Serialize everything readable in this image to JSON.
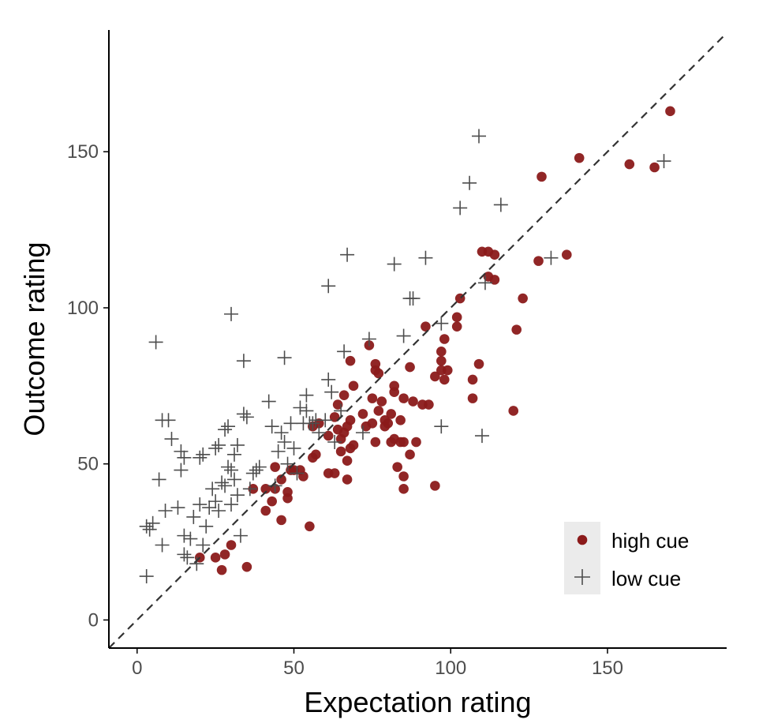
{
  "chart_data": {
    "type": "scatter",
    "title": "",
    "xlabel": "Expectation rating",
    "ylabel": "Outcome rating",
    "xlim": [
      -9,
      188
    ],
    "ylim": [
      -9,
      189
    ],
    "xticks": [
      0,
      50,
      100,
      150
    ],
    "yticks": [
      0,
      50,
      100,
      150
    ],
    "grid": false,
    "legend_position": "bottom-right",
    "reference_line": {
      "type": "identity",
      "style": "dashed",
      "color": "#333333"
    },
    "series": [
      {
        "name": "high cue",
        "marker": "circle",
        "color": "#8b1a1a",
        "points": [
          [
            20,
            20
          ],
          [
            25,
            20
          ],
          [
            27,
            16
          ],
          [
            30,
            24
          ],
          [
            28,
            21
          ],
          [
            35,
            17
          ],
          [
            37,
            42
          ],
          [
            41,
            42
          ],
          [
            41,
            35
          ],
          [
            43,
            38
          ],
          [
            44,
            42
          ],
          [
            44,
            49
          ],
          [
            46,
            45
          ],
          [
            46,
            32
          ],
          [
            48,
            41
          ],
          [
            48,
            39
          ],
          [
            49,
            48
          ],
          [
            50,
            48
          ],
          [
            52,
            48
          ],
          [
            53,
            46
          ],
          [
            55,
            30
          ],
          [
            56,
            52
          ],
          [
            56,
            62
          ],
          [
            57,
            53
          ],
          [
            58,
            63
          ],
          [
            61,
            59
          ],
          [
            61,
            47
          ],
          [
            63,
            65
          ],
          [
            63,
            47
          ],
          [
            64,
            69
          ],
          [
            64,
            61
          ],
          [
            65,
            58
          ],
          [
            65,
            54
          ],
          [
            66,
            60
          ],
          [
            66,
            72
          ],
          [
            67,
            62
          ],
          [
            67,
            51
          ],
          [
            67,
            45
          ],
          [
            68,
            83
          ],
          [
            68,
            64
          ],
          [
            68,
            55
          ],
          [
            69,
            75
          ],
          [
            69,
            56
          ],
          [
            72,
            66
          ],
          [
            73,
            62
          ],
          [
            74,
            88
          ],
          [
            75,
            63
          ],
          [
            75,
            71
          ],
          [
            76,
            57
          ],
          [
            76,
            80
          ],
          [
            76,
            82
          ],
          [
            77,
            67
          ],
          [
            77,
            79
          ],
          [
            78,
            70
          ],
          [
            79,
            64
          ],
          [
            79,
            62
          ],
          [
            80,
            63
          ],
          [
            81,
            66
          ],
          [
            81,
            57
          ],
          [
            82,
            73
          ],
          [
            82,
            75
          ],
          [
            82,
            58
          ],
          [
            83,
            49
          ],
          [
            84,
            57
          ],
          [
            84,
            64
          ],
          [
            85,
            42
          ],
          [
            85,
            46
          ],
          [
            85,
            57
          ],
          [
            85,
            71
          ],
          [
            87,
            53
          ],
          [
            87,
            81
          ],
          [
            88,
            70
          ],
          [
            89,
            57
          ],
          [
            91,
            69
          ],
          [
            92,
            94
          ],
          [
            93,
            69
          ],
          [
            95,
            43
          ],
          [
            95,
            78
          ],
          [
            97,
            83
          ],
          [
            97,
            80
          ],
          [
            97,
            86
          ],
          [
            98,
            77
          ],
          [
            98,
            90
          ],
          [
            99,
            80
          ],
          [
            102,
            97
          ],
          [
            102,
            94
          ],
          [
            103,
            103
          ],
          [
            107,
            71
          ],
          [
            107,
            77
          ],
          [
            109,
            82
          ],
          [
            110,
            118
          ],
          [
            112,
            110
          ],
          [
            112,
            118
          ],
          [
            114,
            117
          ],
          [
            114,
            109
          ],
          [
            120,
            67
          ],
          [
            121,
            93
          ],
          [
            123,
            103
          ],
          [
            128,
            115
          ],
          [
            129,
            142
          ],
          [
            137,
            117
          ],
          [
            141,
            148
          ],
          [
            157,
            146
          ],
          [
            165,
            145
          ],
          [
            170,
            163
          ]
        ]
      },
      {
        "name": "low cue",
        "marker": "cross",
        "color": "#4d4d4d",
        "points": [
          [
            3,
            14
          ],
          [
            3,
            30
          ],
          [
            4,
            29
          ],
          [
            5,
            31
          ],
          [
            6,
            89
          ],
          [
            7,
            45
          ],
          [
            8,
            64
          ],
          [
            8,
            24
          ],
          [
            9,
            35
          ],
          [
            10,
            64
          ],
          [
            11,
            58
          ],
          [
            13,
            36
          ],
          [
            14,
            54
          ],
          [
            14,
            48
          ],
          [
            15,
            52
          ],
          [
            15,
            21
          ],
          [
            15,
            27
          ],
          [
            16,
            20
          ],
          [
            17,
            26
          ],
          [
            18,
            33
          ],
          [
            19,
            18
          ],
          [
            20,
            37
          ],
          [
            20,
            52
          ],
          [
            21,
            53
          ],
          [
            21,
            24
          ],
          [
            22,
            30
          ],
          [
            23,
            36
          ],
          [
            24,
            42
          ],
          [
            25,
            38
          ],
          [
            25,
            55
          ],
          [
            26,
            56
          ],
          [
            26,
            35
          ],
          [
            27,
            44
          ],
          [
            28,
            43
          ],
          [
            28,
            61
          ],
          [
            29,
            49
          ],
          [
            29,
            62
          ],
          [
            30,
            37
          ],
          [
            30,
            98
          ],
          [
            30,
            48
          ],
          [
            31,
            45
          ],
          [
            31,
            53
          ],
          [
            32,
            40
          ],
          [
            32,
            56
          ],
          [
            33,
            27
          ],
          [
            34,
            83
          ],
          [
            34,
            66
          ],
          [
            35,
            65
          ],
          [
            36,
            42
          ],
          [
            37,
            47
          ],
          [
            38,
            48
          ],
          [
            39,
            49
          ],
          [
            42,
            70
          ],
          [
            43,
            62
          ],
          [
            44,
            43
          ],
          [
            45,
            54
          ],
          [
            46,
            60
          ],
          [
            47,
            57
          ],
          [
            47,
            84
          ],
          [
            48,
            50
          ],
          [
            49,
            63
          ],
          [
            50,
            55
          ],
          [
            51,
            47
          ],
          [
            52,
            68
          ],
          [
            53,
            63
          ],
          [
            54,
            67
          ],
          [
            54,
            72
          ],
          [
            55,
            63
          ],
          [
            56,
            63
          ],
          [
            57,
            64
          ],
          [
            58,
            60
          ],
          [
            60,
            64
          ],
          [
            61,
            77
          ],
          [
            61,
            107
          ],
          [
            62,
            73
          ],
          [
            63,
            57
          ],
          [
            65,
            67
          ],
          [
            66,
            86
          ],
          [
            67,
            117
          ],
          [
            72,
            60
          ],
          [
            74,
            90
          ],
          [
            82,
            114
          ],
          [
            85,
            91
          ],
          [
            87,
            103
          ],
          [
            88,
            103
          ],
          [
            92,
            116
          ],
          [
            97,
            95
          ],
          [
            97,
            62
          ],
          [
            103,
            132
          ],
          [
            106,
            140
          ],
          [
            109,
            155
          ],
          [
            110,
            59
          ],
          [
            111,
            108
          ],
          [
            116,
            133
          ],
          [
            132,
            116
          ],
          [
            168,
            147
          ]
        ]
      }
    ]
  },
  "legend": {
    "items": [
      {
        "label": "high cue",
        "marker": "circle",
        "color": "#8b1a1a"
      },
      {
        "label": "low cue",
        "marker": "cross",
        "color": "#4d4d4d"
      }
    ]
  },
  "colors": {
    "axis": "#000000",
    "tick_label": "#4d4d4d",
    "legend_key_bg": "#ebebeb"
  }
}
